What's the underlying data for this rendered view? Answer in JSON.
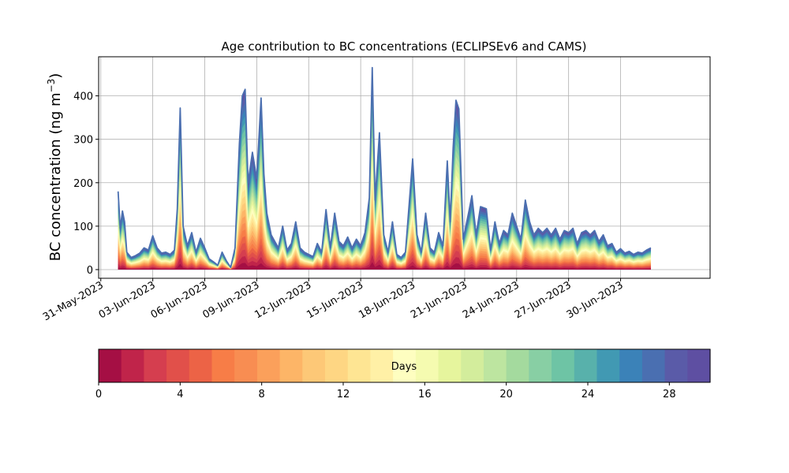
{
  "chart_data": {
    "type": "area",
    "title": "Age contribution to BC concentrations (ECLIPSEv6 and CAMS)",
    "ylabel": "BC concentration (ng m",
    "ylabel_sup": "−3",
    "ylabel_close": ")",
    "xlabel": "",
    "ylim": [
      -20,
      490
    ],
    "yticks": [
      0,
      100,
      200,
      300,
      400
    ],
    "xlim": [
      "2023-05-30T21:00",
      "2023-07-05T04:00"
    ],
    "xticks": [
      "31-May-2023",
      "03-Jun-2023",
      "06-Jun-2023",
      "09-Jun-2023",
      "12-Jun-2023",
      "15-Jun-2023",
      "18-Jun-2023",
      "21-Jun-2023",
      "24-Jun-2023",
      "27-Jun-2023",
      "30-Jun-2023"
    ],
    "grid": true,
    "stacking": "cumulative by age in days, 0 (bottom) to 30 (top)",
    "total_series": {
      "name": "",
      "color": "#4b6fb0",
      "points": [
        [
          "2023-06-01T00:00",
          180
        ],
        [
          "2023-06-01T03:00",
          95
        ],
        [
          "2023-06-01T06:00",
          135
        ],
        [
          "2023-06-01T09:00",
          110
        ],
        [
          "2023-06-01T12:00",
          40
        ],
        [
          "2023-06-01T18:00",
          28
        ],
        [
          "2023-06-02T00:00",
          32
        ],
        [
          "2023-06-02T06:00",
          38
        ],
        [
          "2023-06-02T12:00",
          50
        ],
        [
          "2023-06-02T18:00",
          45
        ],
        [
          "2023-06-03T00:00",
          78
        ],
        [
          "2023-06-03T06:00",
          50
        ],
        [
          "2023-06-03T12:00",
          38
        ],
        [
          "2023-06-03T18:00",
          40
        ],
        [
          "2023-06-04T00:00",
          35
        ],
        [
          "2023-06-04T06:00",
          45
        ],
        [
          "2023-06-04T10:00",
          140
        ],
        [
          "2023-06-04T14:00",
          372
        ],
        [
          "2023-06-04T18:00",
          100
        ],
        [
          "2023-06-05T00:00",
          55
        ],
        [
          "2023-06-05T06:00",
          85
        ],
        [
          "2023-06-05T12:00",
          40
        ],
        [
          "2023-06-05T18:00",
          72
        ],
        [
          "2023-06-06T00:00",
          50
        ],
        [
          "2023-06-06T06:00",
          25
        ],
        [
          "2023-06-06T12:00",
          18
        ],
        [
          "2023-06-06T18:00",
          10
        ],
        [
          "2023-06-07T00:00",
          40
        ],
        [
          "2023-06-07T06:00",
          20
        ],
        [
          "2023-06-07T12:00",
          5
        ],
        [
          "2023-06-07T18:00",
          50
        ],
        [
          "2023-06-08T00:00",
          290
        ],
        [
          "2023-06-08T04:00",
          400
        ],
        [
          "2023-06-08T08:00",
          415
        ],
        [
          "2023-06-08T12:00",
          200
        ],
        [
          "2023-06-08T18:00",
          270
        ],
        [
          "2023-06-09T00:00",
          210
        ],
        [
          "2023-06-09T06:00",
          395
        ],
        [
          "2023-06-09T10:00",
          220
        ],
        [
          "2023-06-09T14:00",
          130
        ],
        [
          "2023-06-09T20:00",
          80
        ],
        [
          "2023-06-10T06:00",
          50
        ],
        [
          "2023-06-10T12:00",
          100
        ],
        [
          "2023-06-10T18:00",
          45
        ],
        [
          "2023-06-11T00:00",
          60
        ],
        [
          "2023-06-11T06:00",
          110
        ],
        [
          "2023-06-11T12:00",
          50
        ],
        [
          "2023-06-11T18:00",
          40
        ],
        [
          "2023-06-12T06:00",
          30
        ],
        [
          "2023-06-12T12:00",
          60
        ],
        [
          "2023-06-12T18:00",
          40
        ],
        [
          "2023-06-13T00:00",
          138
        ],
        [
          "2023-06-13T06:00",
          50
        ],
        [
          "2023-06-13T12:00",
          130
        ],
        [
          "2023-06-13T18:00",
          65
        ],
        [
          "2023-06-14T00:00",
          55
        ],
        [
          "2023-06-14T06:00",
          75
        ],
        [
          "2023-06-14T12:00",
          50
        ],
        [
          "2023-06-14T18:00",
          70
        ],
        [
          "2023-06-15T00:00",
          55
        ],
        [
          "2023-06-15T06:00",
          85
        ],
        [
          "2023-06-15T12:00",
          165
        ],
        [
          "2023-06-15T16:00",
          465
        ],
        [
          "2023-06-15T20:00",
          160
        ],
        [
          "2023-06-16T02:00",
          315
        ],
        [
          "2023-06-16T08:00",
          80
        ],
        [
          "2023-06-16T14:00",
          40
        ],
        [
          "2023-06-16T20:00",
          110
        ],
        [
          "2023-06-17T02:00",
          35
        ],
        [
          "2023-06-17T08:00",
          28
        ],
        [
          "2023-06-17T14:00",
          40
        ],
        [
          "2023-06-18T00:00",
          255
        ],
        [
          "2023-06-18T06:00",
          80
        ],
        [
          "2023-06-18T12:00",
          40
        ],
        [
          "2023-06-18T18:00",
          130
        ],
        [
          "2023-06-19T00:00",
          50
        ],
        [
          "2023-06-19T06:00",
          40
        ],
        [
          "2023-06-19T12:00",
          85
        ],
        [
          "2023-06-19T18:00",
          55
        ],
        [
          "2023-06-20T00:00",
          250
        ],
        [
          "2023-06-20T04:00",
          110
        ],
        [
          "2023-06-20T08:00",
          280
        ],
        [
          "2023-06-20T12:00",
          390
        ],
        [
          "2023-06-20T16:00",
          370
        ],
        [
          "2023-06-20T22:00",
          70
        ],
        [
          "2023-06-21T06:00",
          135
        ],
        [
          "2023-06-21T10:00",
          170
        ],
        [
          "2023-06-21T16:00",
          80
        ],
        [
          "2023-06-21T22:00",
          145
        ],
        [
          "2023-06-22T06:00",
          140
        ],
        [
          "2023-06-22T12:00",
          45
        ],
        [
          "2023-06-22T18:00",
          110
        ],
        [
          "2023-06-23T00:00",
          60
        ],
        [
          "2023-06-23T06:00",
          90
        ],
        [
          "2023-06-23T12:00",
          80
        ],
        [
          "2023-06-23T18:00",
          130
        ],
        [
          "2023-06-24T00:00",
          100
        ],
        [
          "2023-06-24T06:00",
          70
        ],
        [
          "2023-06-24T12:00",
          160
        ],
        [
          "2023-06-24T18:00",
          110
        ],
        [
          "2023-06-25T00:00",
          80
        ],
        [
          "2023-06-25T06:00",
          95
        ],
        [
          "2023-06-25T12:00",
          85
        ],
        [
          "2023-06-25T18:00",
          95
        ],
        [
          "2023-06-26T00:00",
          80
        ],
        [
          "2023-06-26T06:00",
          95
        ],
        [
          "2023-06-26T12:00",
          70
        ],
        [
          "2023-06-26T18:00",
          90
        ],
        [
          "2023-06-27T00:00",
          85
        ],
        [
          "2023-06-27T06:00",
          95
        ],
        [
          "2023-06-27T12:00",
          60
        ],
        [
          "2023-06-27T18:00",
          85
        ],
        [
          "2023-06-28T00:00",
          90
        ],
        [
          "2023-06-28T06:00",
          80
        ],
        [
          "2023-06-28T12:00",
          90
        ],
        [
          "2023-06-28T18:00",
          65
        ],
        [
          "2023-06-29T00:00",
          80
        ],
        [
          "2023-06-29T06:00",
          55
        ],
        [
          "2023-06-29T12:00",
          60
        ],
        [
          "2023-06-29T18:00",
          40
        ],
        [
          "2023-06-30T00:00",
          48
        ],
        [
          "2023-06-30T06:00",
          38
        ],
        [
          "2023-06-30T12:00",
          42
        ],
        [
          "2023-06-30T18:00",
          35
        ],
        [
          "2023-07-01T00:00",
          40
        ],
        [
          "2023-07-01T06:00",
          38
        ],
        [
          "2023-07-01T12:00",
          45
        ],
        [
          "2023-07-01T18:00",
          50
        ]
      ]
    },
    "colorbar": {
      "label": "Days",
      "range": [
        0,
        30
      ],
      "bins": 30,
      "ticks": [
        0,
        4,
        8,
        12,
        16,
        20,
        24,
        28
      ],
      "colors": [
        "#a50f44",
        "#c0244a",
        "#d53e4f",
        "#e1504a",
        "#ec6346",
        "#f77d47",
        "#f88d52",
        "#fba05b",
        "#fdb567",
        "#fdc877",
        "#fed683",
        "#fee593",
        "#fff0a6",
        "#fefec0",
        "#f5fbb0",
        "#e6f59d",
        "#d3ed9c",
        "#bde5a0",
        "#a4da9e",
        "#88cfa4",
        "#6ec4a5",
        "#58b1ab",
        "#4199b3",
        "#3b82b8",
        "#4a6fb1",
        "#5a5ba8",
        "#5e4fa2"
      ]
    }
  }
}
